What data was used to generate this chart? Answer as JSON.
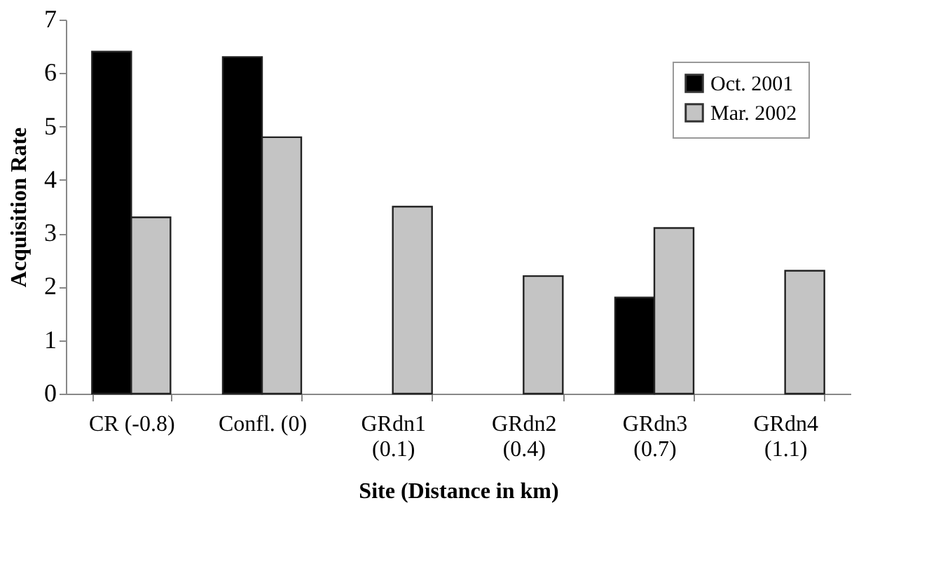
{
  "chart_data": {
    "type": "bar",
    "xlabel": "Site (Distance in km)",
    "ylabel": "Acquisition Rate",
    "categories": [
      "CR (-0.8)",
      "Confl. (0)",
      "GRdn1\n(0.1)",
      "GRdn2\n(0.4)",
      "GRdn3\n(0.7)",
      "GRdn4\n(1.1)"
    ],
    "series": [
      {
        "name": "Oct. 2001",
        "color": "#000000",
        "values": [
          6.4,
          6.3,
          null,
          null,
          1.8,
          null
        ]
      },
      {
        "name": "Mar. 2002",
        "color": "#c4c4c4",
        "values": [
          3.3,
          4.8,
          3.5,
          2.2,
          3.1,
          2.3
        ]
      }
    ],
    "ylim": [
      0,
      7
    ],
    "yticks": [
      0,
      1,
      2,
      3,
      4,
      5,
      6,
      7
    ],
    "grid": false,
    "legend": "top right"
  }
}
